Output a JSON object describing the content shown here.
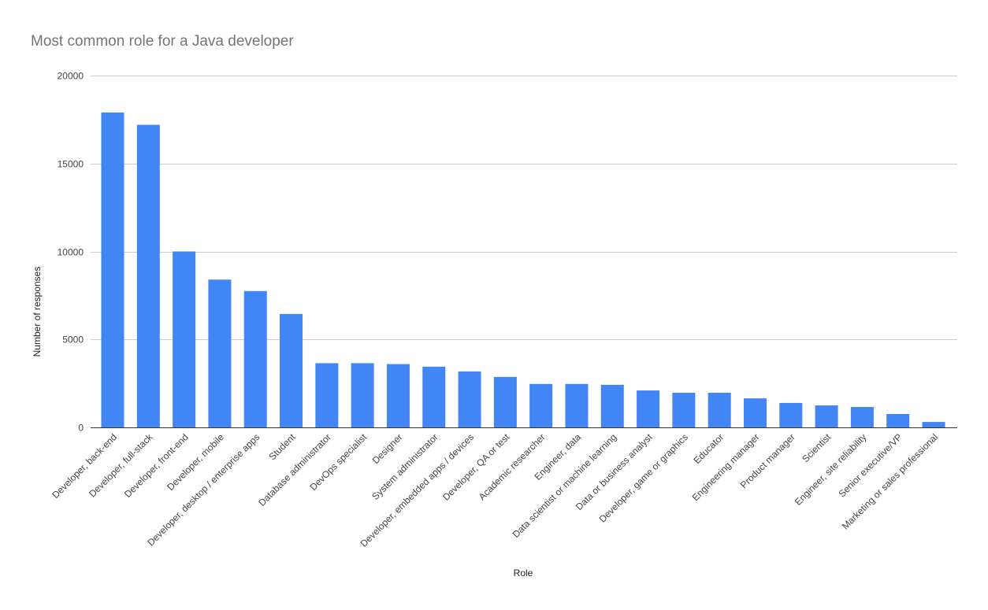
{
  "chart_data": {
    "type": "bar",
    "title": "Most common role for a Java developer",
    "xlabel": "Role",
    "ylabel": "Number of responses",
    "ylim": [
      0,
      20000
    ],
    "yticks": [
      "0",
      "5000",
      "10000",
      "15000",
      "20000"
    ],
    "grid": true,
    "legend": "none",
    "bar_color": "#4285f4",
    "categories": [
      "Developer, back-end",
      "Developer, full-stack",
      "Developer, front-end",
      "Developer, mobile",
      "Developer, desktop / enterprise apps",
      "Student",
      "Database administrator",
      "DevOps specialist",
      "Designer",
      "System administrator",
      "Developer, embedded apps / devices",
      "Developer, QA or test",
      "Academic researcher",
      "Engineer, data",
      "Data scientist or machine learning",
      "Data or business analyst",
      "Developer, game or graphics",
      "Educator",
      "Engineering manager",
      "Product manager",
      "Scientist",
      "Engineer, site reliability",
      "Senior executive/VP",
      "Marketing or sales professional"
    ],
    "values": [
      17900,
      17200,
      10000,
      8400,
      7750,
      6450,
      3650,
      3650,
      3600,
      3450,
      3180,
      2870,
      2470,
      2470,
      2420,
      2100,
      1970,
      1970,
      1650,
      1390,
      1250,
      1160,
      760,
      310
    ]
  }
}
